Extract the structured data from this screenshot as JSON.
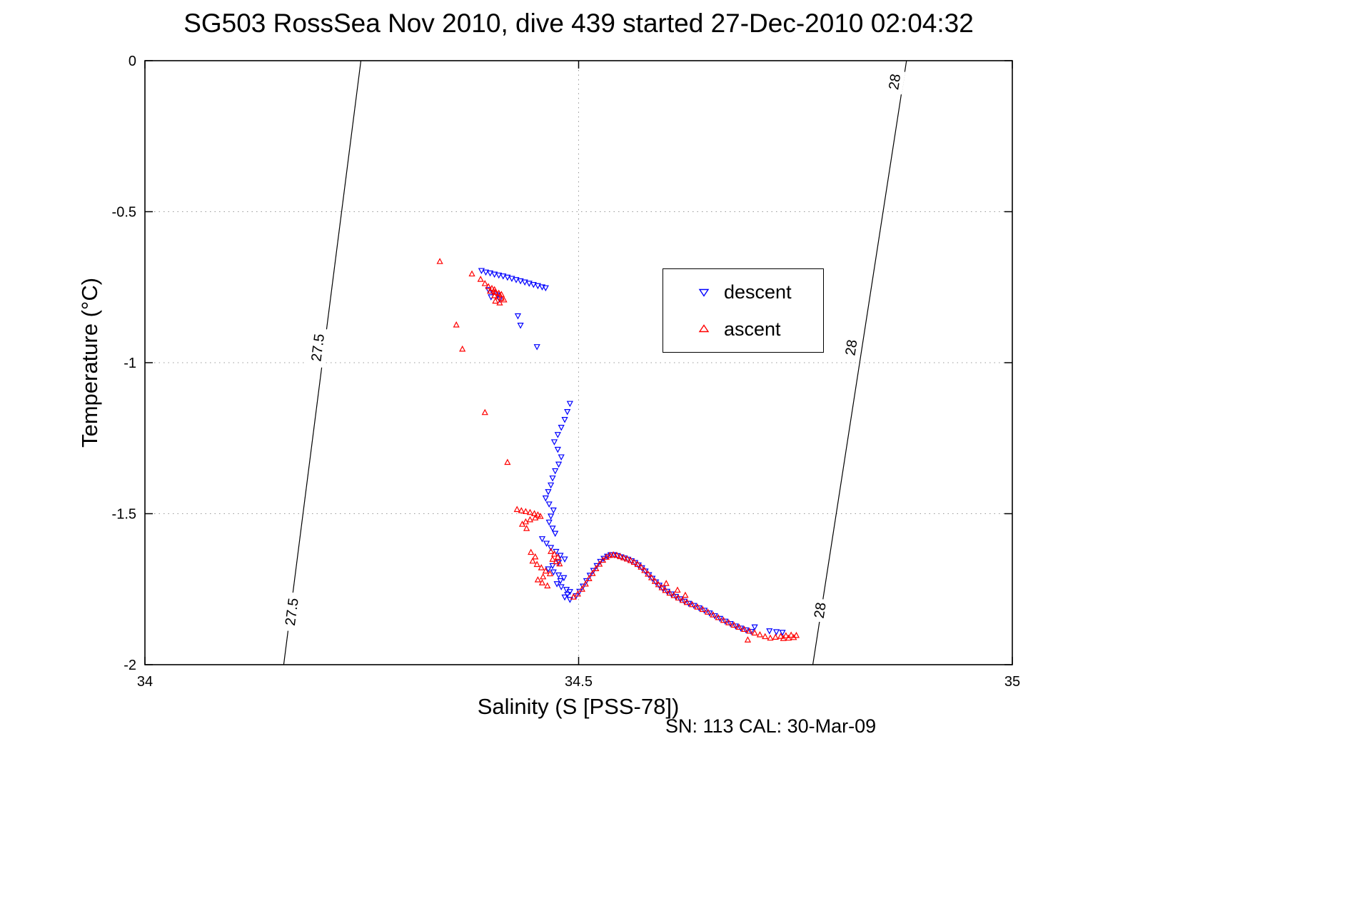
{
  "chart_data": {
    "type": "scatter",
    "title": "SG503 RossSea Nov 2010, dive 439 started 27-Dec-2010 02:04:32",
    "xlabel": "Salinity (S [PSS-78])",
    "ylabel": "Temperature (°C)",
    "annotation": "SN: 113  CAL: 30-Mar-09",
    "xlim": [
      34,
      35
    ],
    "ylim": [
      -2,
      0
    ],
    "xticks": [
      34,
      34.5,
      35
    ],
    "xtick_labels": [
      "34",
      "34.5",
      "35"
    ],
    "yticks": [
      0,
      -0.5,
      -1,
      -1.5,
      -2
    ],
    "ytick_labels": [
      "0",
      "-0.5",
      "-1",
      "-1.5",
      "-2"
    ],
    "grid": "dotted",
    "grid_color": "#999999",
    "axis_color": "#000000",
    "legend": {
      "position": "upper-right-inside",
      "entries": [
        {
          "label": "descent",
          "marker": "triangle-down",
          "color": "#0000ff"
        },
        {
          "label": "ascent",
          "marker": "triangle-up",
          "color": "#ff0000"
        }
      ]
    },
    "contours": [
      {
        "label": "27.5",
        "color": "#000000",
        "points": [
          [
            34.249,
            0
          ],
          [
            34.16,
            -2
          ]
        ],
        "label_positions": [
          [
            34.199,
            -0.95
          ],
          [
            34.169,
            -1.825
          ]
        ]
      },
      {
        "label": "28",
        "color": "#000000",
        "points": [
          [
            34.878,
            0
          ],
          [
            34.77,
            -2
          ]
        ],
        "label_positions": [
          [
            34.864,
            -0.07
          ],
          [
            34.814,
            -0.95
          ],
          [
            34.778,
            -1.82
          ]
        ]
      }
    ],
    "series": [
      {
        "name": "descent",
        "marker": "triangle-down",
        "color": "#0000ff",
        "points": [
          [
            34.388,
            -0.695
          ],
          [
            34.393,
            -0.7
          ],
          [
            34.398,
            -0.703
          ],
          [
            34.403,
            -0.707
          ],
          [
            34.408,
            -0.71
          ],
          [
            34.413,
            -0.713
          ],
          [
            34.418,
            -0.717
          ],
          [
            34.423,
            -0.721
          ],
          [
            34.428,
            -0.725
          ],
          [
            34.433,
            -0.729
          ],
          [
            34.438,
            -0.733
          ],
          [
            34.443,
            -0.737
          ],
          [
            34.448,
            -0.741
          ],
          [
            34.453,
            -0.745
          ],
          [
            34.458,
            -0.749
          ],
          [
            34.462,
            -0.752
          ],
          [
            34.396,
            -0.758
          ],
          [
            34.401,
            -0.767
          ],
          [
            34.406,
            -0.776
          ],
          [
            34.399,
            -0.782
          ],
          [
            34.409,
            -0.79
          ],
          [
            34.43,
            -0.845
          ],
          [
            34.433,
            -0.876
          ],
          [
            34.452,
            -0.947
          ],
          [
            34.49,
            -1.135
          ],
          [
            34.487,
            -1.162
          ],
          [
            34.484,
            -1.188
          ],
          [
            34.48,
            -1.214
          ],
          [
            34.476,
            -1.238
          ],
          [
            34.472,
            -1.262
          ],
          [
            34.476,
            -1.287
          ],
          [
            34.48,
            -1.312
          ],
          [
            34.477,
            -1.336
          ],
          [
            34.473,
            -1.358
          ],
          [
            34.47,
            -1.382
          ],
          [
            34.468,
            -1.405
          ],
          [
            34.465,
            -1.427
          ],
          [
            34.462,
            -1.448
          ],
          [
            34.466,
            -1.468
          ],
          [
            34.471,
            -1.488
          ],
          [
            34.468,
            -1.508
          ],
          [
            34.466,
            -1.528
          ],
          [
            34.47,
            -1.548
          ],
          [
            34.473,
            -1.565
          ],
          [
            34.458,
            -1.583
          ],
          [
            34.463,
            -1.598
          ],
          [
            34.468,
            -1.612
          ],
          [
            34.474,
            -1.625
          ],
          [
            34.479,
            -1.638
          ],
          [
            34.484,
            -1.65
          ],
          [
            34.477,
            -1.661
          ],
          [
            34.47,
            -1.672
          ],
          [
            34.465,
            -1.683
          ],
          [
            34.471,
            -1.693
          ],
          [
            34.477,
            -1.703
          ],
          [
            34.483,
            -1.712
          ],
          [
            34.479,
            -1.722
          ],
          [
            34.475,
            -1.732
          ],
          [
            34.48,
            -1.742
          ],
          [
            34.486,
            -1.751
          ],
          [
            34.49,
            -1.758
          ],
          [
            34.487,
            -1.767
          ],
          [
            34.484,
            -1.776
          ],
          [
            34.49,
            -1.784
          ],
          [
            34.497,
            -1.772
          ],
          [
            34.501,
            -1.757
          ],
          [
            34.505,
            -1.74
          ],
          [
            34.509,
            -1.722
          ],
          [
            34.513,
            -1.704
          ],
          [
            34.517,
            -1.688
          ],
          [
            34.521,
            -1.672
          ],
          [
            34.525,
            -1.658
          ],
          [
            34.529,
            -1.648
          ],
          [
            34.533,
            -1.641
          ],
          [
            34.537,
            -1.636
          ],
          [
            34.541,
            -1.636
          ],
          [
            34.545,
            -1.639
          ],
          [
            34.549,
            -1.643
          ],
          [
            34.553,
            -1.647
          ],
          [
            34.557,
            -1.651
          ],
          [
            34.561,
            -1.656
          ],
          [
            34.565,
            -1.662
          ],
          [
            34.569,
            -1.67
          ],
          [
            34.573,
            -1.679
          ],
          [
            34.577,
            -1.69
          ],
          [
            34.581,
            -1.702
          ],
          [
            34.585,
            -1.714
          ],
          [
            34.589,
            -1.726
          ],
          [
            34.593,
            -1.737
          ],
          [
            34.597,
            -1.747
          ],
          [
            34.602,
            -1.757
          ],
          [
            34.607,
            -1.766
          ],
          [
            34.612,
            -1.774
          ],
          [
            34.617,
            -1.782
          ],
          [
            34.622,
            -1.79
          ],
          [
            34.627,
            -1.797
          ],
          [
            34.633,
            -1.804
          ],
          [
            34.639,
            -1.812
          ],
          [
            34.645,
            -1.82
          ],
          [
            34.651,
            -1.829
          ],
          [
            34.657,
            -1.838
          ],
          [
            34.663,
            -1.847
          ],
          [
            34.669,
            -1.856
          ],
          [
            34.675,
            -1.864
          ],
          [
            34.681,
            -1.872
          ],
          [
            34.687,
            -1.879
          ],
          [
            34.693,
            -1.885
          ],
          [
            34.699,
            -1.89
          ],
          [
            34.703,
            -1.875
          ],
          [
            34.72,
            -1.888
          ],
          [
            34.728,
            -1.891
          ],
          [
            34.735,
            -1.893
          ]
        ]
      },
      {
        "name": "ascent",
        "marker": "triangle-up",
        "color": "#ff0000",
        "points": [
          [
            34.34,
            -0.665
          ],
          [
            34.377,
            -0.706
          ],
          [
            34.387,
            -0.724
          ],
          [
            34.392,
            -0.738
          ],
          [
            34.396,
            -0.748
          ],
          [
            34.4,
            -0.754
          ],
          [
            34.403,
            -0.758
          ],
          [
            34.398,
            -0.763
          ],
          [
            34.404,
            -0.767
          ],
          [
            34.408,
            -0.77
          ],
          [
            34.411,
            -0.774
          ],
          [
            34.403,
            -0.778
          ],
          [
            34.407,
            -0.782
          ],
          [
            34.411,
            -0.787
          ],
          [
            34.414,
            -0.792
          ],
          [
            34.404,
            -0.796
          ],
          [
            34.409,
            -0.802
          ],
          [
            34.359,
            -0.875
          ],
          [
            34.366,
            -0.955
          ],
          [
            34.392,
            -1.165
          ],
          [
            34.418,
            -1.33
          ],
          [
            34.429,
            -1.486
          ],
          [
            34.434,
            -1.49
          ],
          [
            34.439,
            -1.493
          ],
          [
            34.444,
            -1.496
          ],
          [
            34.449,
            -1.5
          ],
          [
            34.453,
            -1.504
          ],
          [
            34.456,
            -1.509
          ],
          [
            34.45,
            -1.514
          ],
          [
            34.444,
            -1.52
          ],
          [
            34.439,
            -1.527
          ],
          [
            34.435,
            -1.535
          ],
          [
            34.44,
            -1.549
          ],
          [
            34.445,
            -1.628
          ],
          [
            34.45,
            -1.643
          ],
          [
            34.447,
            -1.657
          ],
          [
            34.452,
            -1.668
          ],
          [
            34.457,
            -1.679
          ],
          [
            34.462,
            -1.69
          ],
          [
            34.467,
            -1.699
          ],
          [
            34.459,
            -1.709
          ],
          [
            34.453,
            -1.719
          ],
          [
            34.458,
            -1.729
          ],
          [
            34.464,
            -1.739
          ],
          [
            34.468,
            -1.625
          ],
          [
            34.472,
            -1.634
          ],
          [
            34.476,
            -1.644
          ],
          [
            34.47,
            -1.651
          ],
          [
            34.474,
            -1.659
          ],
          [
            34.478,
            -1.666
          ],
          [
            34.494,
            -1.776
          ],
          [
            34.499,
            -1.766
          ],
          [
            34.504,
            -1.75
          ],
          [
            34.508,
            -1.733
          ],
          [
            34.512,
            -1.715
          ],
          [
            34.516,
            -1.698
          ],
          [
            34.52,
            -1.682
          ],
          [
            34.524,
            -1.667
          ],
          [
            34.528,
            -1.654
          ],
          [
            34.532,
            -1.644
          ],
          [
            34.536,
            -1.638
          ],
          [
            34.54,
            -1.636
          ],
          [
            34.544,
            -1.638
          ],
          [
            34.548,
            -1.642
          ],
          [
            34.552,
            -1.646
          ],
          [
            34.556,
            -1.65
          ],
          [
            34.56,
            -1.655
          ],
          [
            34.564,
            -1.661
          ],
          [
            34.568,
            -1.668
          ],
          [
            34.572,
            -1.677
          ],
          [
            34.576,
            -1.688
          ],
          [
            34.58,
            -1.7
          ],
          [
            34.584,
            -1.712
          ],
          [
            34.588,
            -1.724
          ],
          [
            34.592,
            -1.735
          ],
          [
            34.596,
            -1.745
          ],
          [
            34.6,
            -1.754
          ],
          [
            34.605,
            -1.763
          ],
          [
            34.61,
            -1.771
          ],
          [
            34.615,
            -1.779
          ],
          [
            34.62,
            -1.787
          ],
          [
            34.625,
            -1.794
          ],
          [
            34.631,
            -1.801
          ],
          [
            34.637,
            -1.809
          ],
          [
            34.643,
            -1.817
          ],
          [
            34.649,
            -1.826
          ],
          [
            34.655,
            -1.835
          ],
          [
            34.661,
            -1.844
          ],
          [
            34.667,
            -1.853
          ],
          [
            34.673,
            -1.861
          ],
          [
            34.679,
            -1.869
          ],
          [
            34.685,
            -1.876
          ],
          [
            34.691,
            -1.883
          ],
          [
            34.697,
            -1.889
          ],
          [
            34.703,
            -1.895
          ],
          [
            34.709,
            -1.901
          ],
          [
            34.715,
            -1.907
          ],
          [
            34.721,
            -1.912
          ],
          [
            34.727,
            -1.909
          ],
          [
            34.733,
            -1.906
          ],
          [
            34.739,
            -1.904
          ],
          [
            34.745,
            -1.902
          ],
          [
            34.751,
            -1.903
          ],
          [
            34.748,
            -1.91
          ],
          [
            34.742,
            -1.912
          ],
          [
            34.736,
            -1.913
          ],
          [
            34.695,
            -1.918
          ],
          [
            34.601,
            -1.731
          ],
          [
            34.614,
            -1.753
          ],
          [
            34.623,
            -1.77
          ]
        ]
      }
    ]
  }
}
